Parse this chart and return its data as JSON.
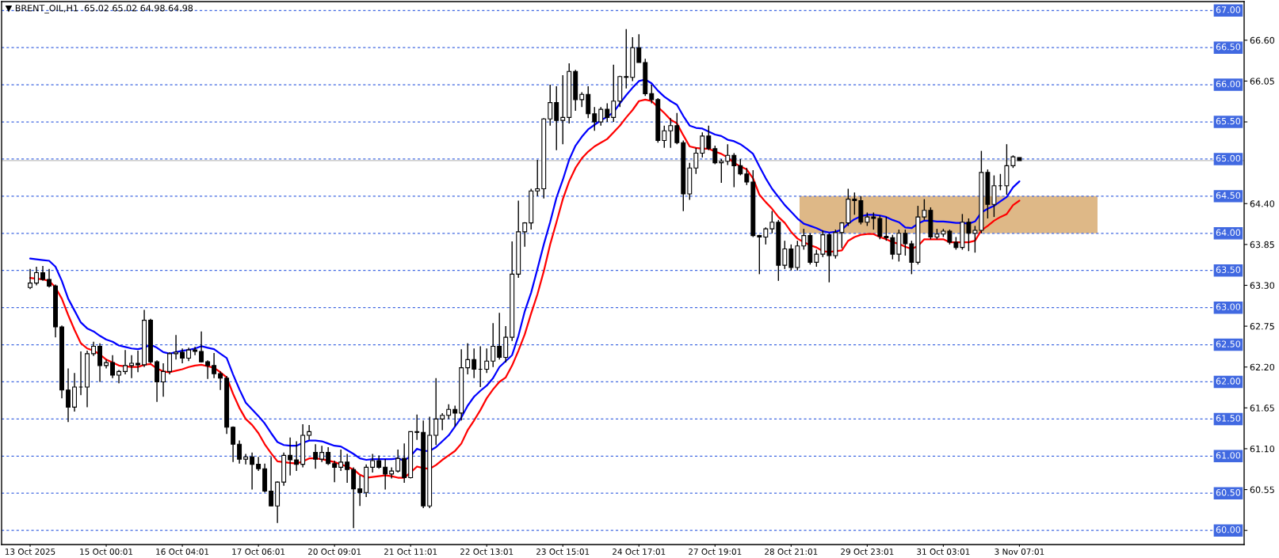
{
  "chart_data": {
    "type": "candlestick",
    "title": "▼ BRENT_OIL,H1  65.02 65.02 64.98 64.98",
    "color": "#000000",
    "categories": [
      "13 Oct 2025",
      null,
      null,
      null,
      null,
      null,
      null,
      null,
      null,
      null,
      null,
      null,
      "15 Oct 00:01",
      null,
      null,
      null,
      null,
      null,
      null,
      null,
      null,
      null,
      null,
      null,
      "16 Oct 04:01",
      null,
      null,
      null,
      null,
      null,
      null,
      null,
      null,
      null,
      null,
      null,
      "17 Oct 06:01",
      null,
      null,
      null,
      null,
      null,
      null,
      null,
      null,
      null,
      null,
      null,
      "20 Oct 09:01",
      null,
      null,
      null,
      null,
      null,
      null,
      null,
      null,
      null,
      null,
      null,
      "21 Oct 11:01",
      null,
      null,
      null,
      null,
      null,
      null,
      null,
      null,
      null,
      null,
      null,
      "22 Oct 13:01",
      null,
      null,
      null,
      null,
      null,
      null,
      null,
      null,
      null,
      null,
      null,
      "23 Oct 15:01",
      null,
      null,
      null,
      null,
      null,
      null,
      null,
      null,
      null,
      null,
      null,
      "24 Oct 17:01",
      null,
      null,
      null,
      null,
      null,
      null,
      null,
      null,
      null,
      null,
      null,
      "27 Oct 19:01",
      null,
      null,
      null,
      null,
      null,
      null,
      null,
      null,
      null,
      null,
      null,
      "28 Oct 21:01",
      null,
      null,
      null,
      null,
      null,
      null,
      null,
      null,
      null,
      null,
      null,
      "29 Oct 23:01",
      null,
      null,
      null,
      null,
      null,
      null,
      null,
      null,
      null,
      null,
      null,
      "31 Oct 03:01",
      null,
      null,
      null,
      null,
      null,
      null,
      null,
      null,
      null,
      null,
      null,
      "3 Nov 07:01"
    ],
    "ohlc": [
      [
        63.27,
        63.52,
        63.25,
        63.33
      ],
      [
        63.33,
        63.55,
        63.3,
        63.47
      ],
      [
        63.47,
        63.56,
        63.36,
        63.38
      ],
      [
        63.38,
        63.52,
        63.27,
        63.29
      ],
      [
        63.29,
        63.31,
        62.6,
        62.74
      ],
      [
        62.74,
        62.76,
        61.78,
        61.89
      ],
      [
        61.89,
        62.18,
        61.46,
        61.66
      ],
      [
        61.66,
        62.12,
        61.6,
        61.93
      ],
      [
        61.93,
        62.41,
        61.82,
        61.93
      ],
      [
        61.93,
        62.42,
        61.66,
        62.38
      ],
      [
        62.38,
        62.54,
        62.35,
        62.48
      ],
      [
        62.48,
        62.52,
        62.0,
        62.22
      ],
      [
        62.22,
        62.3,
        62.18,
        62.26
      ],
      [
        62.26,
        62.36,
        62.05,
        62.09
      ],
      [
        62.09,
        62.16,
        61.98,
        62.14
      ],
      [
        62.14,
        62.43,
        62.1,
        62.22
      ],
      [
        62.22,
        62.36,
        62.05,
        62.25
      ],
      [
        62.25,
        62.42,
        62.13,
        62.23
      ],
      [
        62.23,
        62.97,
        62.2,
        62.83
      ],
      [
        62.83,
        62.85,
        62.25,
        62.27
      ],
      [
        62.27,
        62.29,
        61.73,
        62.0
      ],
      [
        62.0,
        62.25,
        61.8,
        62.14
      ],
      [
        62.14,
        62.4,
        62.1,
        62.38
      ],
      [
        62.38,
        62.63,
        62.3,
        62.4
      ],
      [
        62.4,
        62.45,
        62.25,
        62.32
      ],
      [
        62.32,
        62.46,
        62.28,
        62.43
      ],
      [
        62.43,
        62.47,
        62.36,
        62.41
      ],
      [
        62.41,
        62.68,
        62.26,
        62.27
      ],
      [
        62.27,
        62.29,
        62.04,
        62.22
      ],
      [
        62.22,
        62.39,
        62.05,
        62.11
      ],
      [
        62.11,
        62.14,
        61.89,
        62.05
      ],
      [
        62.05,
        62.08,
        61.3,
        61.39
      ],
      [
        61.39,
        61.4,
        60.92,
        61.16
      ],
      [
        61.16,
        61.21,
        60.9,
        60.96
      ],
      [
        60.96,
        61.03,
        60.89,
        60.99
      ],
      [
        60.99,
        61.05,
        60.55,
        60.89
      ],
      [
        60.89,
        60.99,
        60.8,
        60.83
      ],
      [
        60.83,
        60.9,
        60.51,
        60.53
      ],
      [
        60.53,
        60.99,
        60.33,
        60.33
      ],
      [
        60.33,
        60.66,
        60.1,
        60.65
      ],
      [
        60.65,
        61.05,
        60.6,
        61.01
      ],
      [
        61.01,
        61.25,
        60.74,
        60.95
      ],
      [
        60.95,
        61.2,
        60.8,
        60.89
      ],
      [
        60.89,
        61.43,
        60.85,
        61.28
      ],
      [
        61.28,
        61.42,
        61.22,
        61.33
      ],
      [
        61.05,
        61.16,
        60.83,
        60.96
      ],
      [
        60.96,
        61.14,
        60.92,
        61.05
      ],
      [
        61.05,
        61.12,
        60.88,
        60.9
      ],
      [
        60.9,
        60.94,
        60.65,
        60.85
      ],
      [
        60.85,
        61.09,
        60.8,
        60.92
      ],
      [
        60.92,
        61.03,
        60.64,
        60.82
      ],
      [
        60.82,
        60.85,
        60.03,
        60.56
      ],
      [
        60.56,
        60.74,
        60.33,
        60.51
      ],
      [
        60.51,
        60.89,
        60.45,
        60.85
      ],
      [
        60.85,
        61.03,
        60.78,
        60.94
      ],
      [
        60.94,
        61.01,
        60.83,
        60.85
      ],
      [
        60.85,
        60.96,
        60.55,
        60.76
      ],
      [
        60.76,
        60.85,
        60.7,
        60.8
      ],
      [
        60.8,
        61.09,
        60.78,
        60.97
      ],
      [
        60.97,
        61.17,
        60.64,
        60.71
      ],
      [
        60.71,
        61.33,
        60.7,
        61.33
      ],
      [
        61.33,
        61.56,
        61.22,
        61.32
      ],
      [
        61.32,
        61.48,
        60.3,
        60.33
      ],
      [
        60.33,
        61.53,
        60.3,
        61.28
      ],
      [
        61.28,
        62.05,
        61.15,
        61.5
      ],
      [
        61.5,
        61.58,
        61.35,
        61.55
      ],
      [
        61.55,
        61.7,
        61.5,
        61.63
      ],
      [
        61.63,
        61.68,
        61.4,
        61.58
      ],
      [
        61.58,
        62.44,
        61.48,
        62.19
      ],
      [
        62.19,
        62.52,
        62.1,
        62.3
      ],
      [
        62.3,
        62.45,
        62.05,
        62.17
      ],
      [
        62.17,
        62.48,
        61.93,
        62.17
      ],
      [
        62.17,
        62.45,
        62.12,
        62.28
      ],
      [
        62.28,
        62.79,
        62.2,
        62.48
      ],
      [
        62.48,
        62.93,
        62.3,
        62.33
      ],
      [
        62.33,
        62.75,
        62.26,
        62.6
      ],
      [
        62.6,
        63.89,
        62.55,
        63.45
      ],
      [
        63.45,
        64.44,
        63.4,
        64.02
      ],
      [
        64.02,
        64.15,
        63.82,
        64.14
      ],
      [
        64.14,
        64.6,
        64.05,
        64.57
      ],
      [
        64.57,
        64.99,
        64.5,
        64.6
      ],
      [
        64.6,
        65.55,
        64.47,
        65.54
      ],
      [
        65.54,
        66.0,
        65.45,
        65.76
      ],
      [
        65.76,
        65.98,
        65.12,
        65.52
      ],
      [
        65.52,
        66.13,
        65.2,
        65.56
      ],
      [
        65.56,
        66.29,
        65.48,
        66.18
      ],
      [
        66.18,
        66.2,
        65.65,
        65.8
      ],
      [
        65.8,
        65.9,
        65.7,
        65.87
      ],
      [
        65.87,
        65.98,
        65.55,
        65.61
      ],
      [
        65.61,
        65.7,
        65.38,
        65.5
      ],
      [
        65.5,
        65.7,
        65.45,
        65.67
      ],
      [
        65.67,
        65.75,
        65.5,
        65.56
      ],
      [
        65.56,
        66.27,
        65.5,
        65.78
      ],
      [
        65.78,
        66.12,
        65.7,
        66.11
      ],
      [
        66.11,
        66.75,
        65.95,
        66.1
      ],
      [
        66.1,
        66.64,
        66.05,
        66.5
      ],
      [
        66.5,
        66.68,
        66.3,
        66.3
      ],
      [
        66.3,
        66.35,
        65.85,
        65.88
      ],
      [
        65.88,
        66.0,
        65.75,
        65.8
      ],
      [
        65.8,
        65.82,
        65.22,
        65.25
      ],
      [
        65.25,
        65.45,
        65.15,
        65.38
      ],
      [
        65.38,
        65.55,
        65.15,
        65.45
      ],
      [
        65.45,
        65.62,
        65.2,
        65.22
      ],
      [
        65.22,
        65.25,
        64.3,
        64.53
      ],
      [
        64.53,
        64.95,
        64.45,
        64.88
      ],
      [
        64.88,
        65.15,
        64.8,
        65.08
      ],
      [
        65.08,
        65.36,
        65.02,
        65.31
      ],
      [
        65.31,
        65.45,
        65.12,
        65.14
      ],
      [
        65.14,
        65.18,
        64.93,
        64.95
      ],
      [
        64.95,
        65.0,
        64.68,
        64.97
      ],
      [
        64.97,
        65.2,
        64.92,
        65.05
      ],
      [
        65.05,
        65.08,
        64.62,
        64.91
      ],
      [
        64.91,
        65.0,
        64.78,
        64.8
      ],
      [
        64.8,
        64.88,
        64.65,
        64.69
      ],
      [
        64.69,
        64.85,
        63.95,
        63.97
      ],
      [
        63.97,
        63.98,
        63.45,
        63.95
      ],
      [
        63.95,
        64.08,
        63.85,
        64.06
      ],
      [
        64.06,
        64.3,
        64.0,
        64.15
      ],
      [
        64.15,
        64.18,
        63.36,
        63.57
      ],
      [
        63.57,
        63.9,
        63.52,
        63.79
      ],
      [
        63.79,
        63.85,
        63.5,
        63.54
      ],
      [
        63.54,
        63.9,
        63.5,
        63.83
      ],
      [
        63.83,
        64.06,
        63.78,
        63.97
      ],
      [
        63.97,
        64.0,
        63.58,
        63.61
      ],
      [
        63.61,
        63.78,
        63.55,
        63.72
      ],
      [
        63.72,
        64.04,
        63.68,
        63.98
      ],
      [
        63.98,
        64.0,
        63.34,
        63.7
      ],
      [
        63.7,
        64.05,
        63.66,
        64.01
      ],
      [
        64.01,
        64.15,
        63.8,
        64.14
      ],
      [
        64.14,
        64.6,
        64.1,
        64.46
      ],
      [
        64.46,
        64.55,
        64.25,
        64.44
      ],
      [
        64.44,
        64.5,
        64.12,
        64.15
      ],
      [
        64.15,
        64.28,
        64.1,
        64.22
      ],
      [
        64.22,
        64.28,
        64.05,
        64.2
      ],
      [
        64.2,
        64.24,
        63.92,
        63.96
      ],
      [
        63.96,
        64.22,
        63.9,
        63.94
      ],
      [
        63.94,
        63.98,
        63.65,
        63.72
      ],
      [
        63.72,
        64.05,
        63.62,
        64.0
      ],
      [
        64.0,
        64.05,
        63.7,
        63.86
      ],
      [
        63.86,
        63.9,
        63.45,
        63.61
      ],
      [
        63.61,
        64.37,
        63.58,
        64.22
      ],
      [
        64.22,
        64.46,
        64.18,
        64.31
      ],
      [
        64.31,
        64.35,
        63.92,
        63.95
      ],
      [
        63.95,
        64.06,
        63.92,
        63.99
      ],
      [
        63.99,
        64.06,
        63.95,
        64.03
      ],
      [
        64.03,
        64.05,
        63.85,
        63.88
      ],
      [
        63.88,
        63.95,
        63.78,
        63.81
      ],
      [
        63.81,
        64.26,
        63.78,
        64.15
      ],
      [
        64.15,
        64.2,
        63.76,
        64.0
      ],
      [
        64.0,
        64.1,
        63.74,
        64.04
      ],
      [
        64.04,
        65.11,
        64.0,
        64.82
      ],
      [
        64.82,
        64.86,
        64.2,
        64.39
      ],
      [
        64.39,
        64.78,
        64.22,
        64.64
      ],
      [
        64.64,
        64.8,
        64.58,
        64.64
      ],
      [
        64.64,
        65.2,
        64.52,
        64.91
      ],
      [
        64.91,
        65.05,
        64.88,
        65.03
      ],
      [
        65.02,
        65.02,
        64.98,
        64.98
      ]
    ],
    "series": [
      {
        "type": "line",
        "color": "#0000ff",
        "values": [
          63.66,
          63.65,
          63.64,
          63.63,
          63.55,
          63.36,
          63.12,
          62.96,
          62.8,
          62.72,
          62.68,
          62.62,
          62.57,
          62.54,
          62.49,
          62.47,
          62.45,
          62.44,
          62.46,
          62.5,
          62.46,
          62.4,
          62.38,
          62.4,
          62.42,
          62.43,
          62.45,
          62.48,
          62.46,
          62.44,
          62.38,
          62.32,
          62.1,
          61.9,
          61.72,
          61.63,
          61.54,
          61.44,
          61.31,
          61.19,
          61.15,
          61.14,
          61.14,
          61.18,
          61.21,
          61.21,
          61.2,
          61.17,
          61.14,
          61.13,
          61.08,
          61.03,
          60.97,
          60.95,
          60.96,
          60.96,
          60.96,
          60.96,
          60.97,
          60.94,
          61.0,
          61.1,
          61.07,
          61.07,
          61.12,
          61.2,
          61.28,
          61.4,
          61.52,
          61.68,
          61.8,
          61.88,
          61.95,
          62.05,
          62.2,
          62.28,
          62.36,
          62.62,
          62.95,
          63.2,
          63.52,
          63.85,
          64.15,
          64.48,
          64.72,
          64.99,
          65.18,
          65.3,
          65.4,
          65.46,
          65.52,
          65.57,
          65.63,
          65.75,
          65.86,
          65.96,
          66.05,
          66.07,
          66.02,
          65.92,
          65.84,
          65.78,
          65.73,
          65.58,
          65.45,
          65.42,
          65.41,
          65.37,
          65.33,
          65.31,
          65.26,
          65.24,
          65.2,
          65.14,
          65.07,
          64.9,
          64.74,
          64.6,
          64.49,
          64.38,
          64.29,
          64.2,
          64.13,
          64.1,
          64.07,
          64.03,
          64.01,
          64.02,
          64.05,
          64.13,
          64.19,
          64.23,
          64.25,
          64.25,
          64.24,
          64.22,
          64.18,
          64.15,
          64.08,
          64.07,
          64.13,
          64.17,
          64.17,
          64.16,
          64.16,
          64.15,
          64.14,
          64.14,
          64.13,
          64.16,
          64.28,
          64.33,
          64.37,
          64.43,
          64.49,
          64.62,
          64.7
        ]
      },
      {
        "type": "line",
        "color": "#ff0000",
        "values": [
          63.4,
          63.39,
          63.38,
          63.36,
          63.27,
          63.12,
          62.9,
          62.7,
          62.52,
          62.45,
          62.42,
          62.37,
          62.3,
          62.26,
          62.22,
          62.21,
          62.2,
          62.2,
          62.23,
          62.24,
          62.18,
          62.14,
          62.13,
          62.15,
          62.17,
          62.2,
          62.22,
          62.23,
          62.21,
          62.19,
          62.13,
          62.06,
          61.84,
          61.65,
          61.5,
          61.42,
          61.31,
          61.16,
          61.04,
          60.93,
          60.92,
          60.91,
          60.9,
          60.93,
          60.97,
          60.97,
          60.96,
          60.94,
          60.92,
          60.89,
          60.86,
          60.82,
          60.75,
          60.71,
          60.72,
          60.73,
          60.74,
          60.73,
          60.71,
          60.71,
          60.78,
          60.86,
          60.84,
          60.83,
          60.88,
          60.95,
          61.01,
          61.07,
          61.17,
          61.35,
          61.48,
          61.62,
          61.78,
          61.9,
          62.0,
          62.06,
          62.22,
          62.42,
          62.64,
          62.92,
          63.18,
          63.49,
          63.85,
          64.15,
          64.46,
          64.7,
          64.88,
          65.01,
          65.1,
          65.17,
          65.22,
          65.27,
          65.36,
          65.45,
          65.56,
          65.66,
          65.78,
          65.8,
          65.78,
          65.7,
          65.62,
          65.53,
          65.48,
          65.32,
          65.17,
          65.15,
          65.14,
          65.14,
          65.1,
          65.07,
          65.02,
          64.95,
          64.9,
          64.86,
          64.74,
          64.52,
          64.42,
          64.33,
          64.22,
          64.14,
          64.02,
          63.93,
          63.88,
          63.84,
          63.81,
          63.76,
          63.75,
          63.76,
          63.77,
          63.9,
          63.95,
          63.98,
          63.99,
          63.99,
          63.95,
          63.92,
          63.88,
          63.86,
          63.82,
          63.79,
          63.83,
          63.92,
          63.92,
          63.92,
          63.92,
          63.88,
          63.88,
          63.88,
          63.88,
          63.9,
          64.04,
          64.1,
          64.17,
          64.22,
          64.26,
          64.38,
          64.44
        ]
      }
    ],
    "ylim": [
      59.81,
      67.12
    ],
    "yticks": [
      {
        "value": 60.0,
        "label": null
      },
      60.55,
      {
        "value": 61.1,
        "label": "61.10"
      },
      61.65,
      {
        "value": 62.2,
        "label": "62.20"
      },
      62.75,
      {
        "value": 63.3,
        "label": "63.30"
      },
      63.85,
      {
        "value": 64.4,
        "label": "64.40"
      },
      {
        "value": 65.5,
        "label": null
      },
      66.05,
      {
        "value": 66.6,
        "label": "66.60"
      }
    ],
    "ref_lines": [
      {
        "axis": "y",
        "value": 60.0,
        "label": "60.00",
        "color": "#4169e1",
        "line_style": "dashed"
      },
      {
        "axis": "y",
        "value": 60.5,
        "label": "60.50",
        "color": "#4169e1",
        "line_style": "dashed"
      },
      {
        "axis": "y",
        "value": 61.0,
        "label": "61.00",
        "color": "#4169e1",
        "line_style": "dashed"
      },
      {
        "axis": "y",
        "value": 61.5,
        "label": "61.50",
        "color": "#4169e1",
        "line_style": "dashed"
      },
      {
        "axis": "y",
        "value": 62.0,
        "label": "62.00",
        "color": "#4169e1",
        "line_style": "dashed"
      },
      {
        "axis": "y",
        "value": 62.5,
        "label": "62.50",
        "color": "#4169e1",
        "line_style": "dashed"
      },
      {
        "axis": "y",
        "value": 63.0,
        "label": "63.00",
        "color": "#4169e1",
        "line_style": "dashed"
      },
      {
        "axis": "y",
        "value": 63.5,
        "label": "63.50",
        "color": "#4169e1",
        "line_style": "dashed"
      },
      {
        "axis": "y",
        "value": 64.0,
        "label": "64.00",
        "color": "#4169e1",
        "line_style": "dashed"
      },
      {
        "axis": "y",
        "value": 64.5,
        "label": "64.50",
        "color": "#4169e1",
        "line_style": "dashed"
      },
      {
        "axis": "y",
        "value": 65.0,
        "label": "65.00",
        "color": "#4169e1",
        "line_style": "dashed"
      },
      {
        "axis": "y",
        "value": 65.5,
        "label": "65.50",
        "color": "#4169e1",
        "line_style": "dashed"
      },
      {
        "axis": "y",
        "value": 66.0,
        "label": "66.00",
        "color": "#4169e1",
        "line_style": "dashed"
      },
      {
        "axis": "y",
        "value": 66.5,
        "label": "66.50",
        "color": "#4169e1",
        "line_style": "dashed"
      },
      {
        "axis": "y",
        "value": 67.0,
        "label": "67.00",
        "color": "#4169e1",
        "line_style": "dashed"
      },
      {
        "axis": "y",
        "value": 64.98,
        "color": "#c0c0c0",
        "line_style": "solid"
      }
    ],
    "bands": [
      {
        "axis": "y",
        "from": 64.0,
        "to": 64.5,
        "color": "#deb887"
      }
    ]
  }
}
